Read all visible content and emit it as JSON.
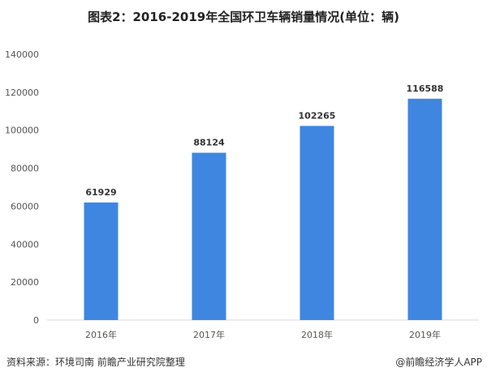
{
  "title": "图表2：2016-2019年全国环卫车辆销量情况(单位：辆)",
  "source": "资料来源：环境司南 前瞻产业研究院整理",
  "credit": "@前瞻经济学人APP",
  "chart_data": {
    "type": "bar",
    "title": "图表2：2016-2019年全国环卫车辆销量情况(单位：辆)",
    "categories": [
      "2016年",
      "2017年",
      "2018年",
      "2019年"
    ],
    "values": [
      61929,
      88124,
      102265,
      116588
    ],
    "data_labels": [
      "61929",
      "88124",
      "102265",
      "116588"
    ],
    "ylim": [
      0,
      140000
    ],
    "yticks": [
      "0",
      "20000",
      "40000",
      "60000",
      "80000",
      "100000",
      "120000",
      "140000"
    ],
    "grid": false,
    "bar_color": "#3f86e0"
  }
}
